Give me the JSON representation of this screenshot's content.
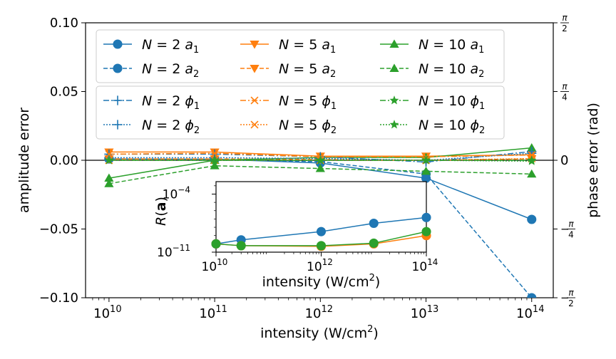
{
  "chart_data": {
    "type": "line",
    "x_scale": "log",
    "x": [
      10000000000.0,
      100000000000.0,
      1000000000000.0,
      10000000000000.0,
      100000000000000.0
    ],
    "xlabel": "intensity (W/cm²)",
    "xlabel_main": "intensity (W/cm",
    "xlabel_sup": "2",
    "xlabel_tail": ")",
    "xlim": [
      6000000000.0,
      160000000000000.0
    ],
    "x_ticks": [
      {
        "value": 10000000000.0,
        "exp": "10"
      },
      {
        "value": 100000000000.0,
        "exp": "11"
      },
      {
        "value": 1000000000000.0,
        "exp": "12"
      },
      {
        "value": 10000000000000.0,
        "exp": "13"
      },
      {
        "value": 100000000000000.0,
        "exp": "14"
      }
    ],
    "ylabel": "amplitude error",
    "ylim": [
      -0.1,
      0.1
    ],
    "y_ticks": [
      "0.10",
      "0.05",
      "0.00",
      "−0.05",
      "−0.10"
    ],
    "y2label": "phase error (rad)",
    "y2lim": [
      -1.5708,
      1.5708
    ],
    "y2_ticks": [
      {
        "value": 1.5708,
        "sign": "",
        "den": "2"
      },
      {
        "value": 0.7854,
        "sign": "",
        "den": "4"
      },
      {
        "value": 0,
        "sign": "",
        "den": ""
      },
      {
        "value": -0.7854,
        "sign": "−",
        "den": "4"
      },
      {
        "value": -1.5708,
        "sign": "−",
        "den": "2"
      }
    ],
    "y2_zero_label": "0",
    "pi_symbol": "π",
    "legend_location": "top-left",
    "series": [
      {
        "name": "N = 2 a1",
        "N": "2",
        "sym": "a",
        "sub": "1",
        "color": "#1f77b4",
        "dash": "",
        "marker": "circle",
        "axis": "amp",
        "x": [
          10000000000.0,
          100000000000.0,
          1000000000000.0,
          10000000000000.0,
          100000000000000.0
        ],
        "y": [
          0.001,
          0.0008,
          -0.002,
          -0.013,
          -0.043
        ]
      },
      {
        "name": "N = 2 a2",
        "N": "2",
        "sym": "a",
        "sub": "2",
        "color": "#1f77b4",
        "dash": "6,3",
        "marker": "circle",
        "axis": "amp",
        "x": [
          10000000000.0,
          100000000000.0,
          1000000000000.0,
          10000000000000.0,
          100000000000000.0
        ],
        "y": [
          0.001,
          0.0005,
          -0.001,
          -0.01,
          -0.1
        ]
      },
      {
        "name": "N = 5 a1",
        "N": "5",
        "sym": "a",
        "sub": "1",
        "color": "#ff7f0e",
        "dash": "",
        "marker": "triangle-down",
        "axis": "amp",
        "x": [
          10000000000.0,
          100000000000.0,
          1000000000000.0,
          10000000000000.0,
          100000000000000.0
        ],
        "y": [
          0.006,
          0.006,
          0.003,
          0.003,
          0.004
        ]
      },
      {
        "name": "N = 5 a2",
        "N": "5",
        "sym": "a",
        "sub": "2",
        "color": "#ff7f0e",
        "dash": "6,3",
        "marker": "triangle-down",
        "axis": "amp",
        "x": [
          10000000000.0,
          100000000000.0,
          1000000000000.0,
          10000000000000.0,
          100000000000000.0
        ],
        "y": [
          0.001,
          0.001,
          0.0005,
          0.0,
          0.001
        ]
      },
      {
        "name": "N = 10 a1",
        "N": "10",
        "sym": "a",
        "sub": "1",
        "color": "#2ca02c",
        "dash": "",
        "marker": "triangle-up",
        "axis": "amp",
        "x": [
          10000000000.0,
          100000000000.0,
          1000000000000.0,
          10000000000000.0,
          100000000000000.0
        ],
        "y": [
          -0.013,
          0.0,
          0.002,
          0.002,
          0.009
        ]
      },
      {
        "name": "N = 10 a2",
        "N": "10",
        "sym": "a",
        "sub": "2",
        "color": "#2ca02c",
        "dash": "6,3",
        "marker": "triangle-up",
        "axis": "amp",
        "x": [
          10000000000.0,
          100000000000.0,
          1000000000000.0,
          10000000000000.0,
          100000000000000.0
        ],
        "y": [
          -0.017,
          -0.004,
          -0.006,
          -0.008,
          -0.01
        ]
      },
      {
        "name": "N = 2 ϕ1",
        "N": "2",
        "sym": "ϕ",
        "sub": "1",
        "color": "#1f77b4",
        "dash": "8,3,2,3",
        "marker": "plus",
        "axis": "phase",
        "x": [
          10000000000.0,
          100000000000.0,
          1000000000000.0,
          10000000000000.0,
          100000000000000.0
        ],
        "y": [
          0.07,
          0.07,
          0.04,
          -0.02,
          0.1
        ]
      },
      {
        "name": "N = 2 ϕ2",
        "N": "2",
        "sym": "ϕ",
        "sub": "2",
        "color": "#1f77b4",
        "dash": "2,2",
        "marker": "plus",
        "axis": "phase",
        "x": [
          10000000000.0,
          100000000000.0,
          1000000000000.0,
          10000000000000.0,
          100000000000000.0
        ],
        "y": [
          0.03,
          0.03,
          0.02,
          0.0,
          0.08
        ]
      },
      {
        "name": "N = 5 ϕ1",
        "N": "5",
        "sym": "ϕ",
        "sub": "1",
        "color": "#ff7f0e",
        "dash": "8,3,2,3",
        "marker": "x",
        "axis": "phase",
        "x": [
          10000000000.0,
          100000000000.0,
          1000000000000.0,
          10000000000000.0,
          100000000000000.0
        ],
        "y": [
          0.07,
          0.08,
          0.04,
          0.04,
          0.06
        ]
      },
      {
        "name": "N = 5 ϕ2",
        "N": "5",
        "sym": "ϕ",
        "sub": "2",
        "color": "#ff7f0e",
        "dash": "2,2",
        "marker": "x",
        "axis": "phase",
        "x": [
          10000000000.0,
          100000000000.0,
          1000000000000.0,
          10000000000000.0,
          100000000000000.0
        ],
        "y": [
          0.0,
          0.0,
          0.0,
          0.0,
          0.02
        ]
      },
      {
        "name": "N = 10 ϕ1",
        "N": "10",
        "sym": "ϕ",
        "sub": "1",
        "color": "#2ca02c",
        "dash": "8,3,2,3",
        "marker": "star",
        "axis": "phase",
        "x": [
          10000000000.0,
          100000000000.0,
          1000000000000.0,
          10000000000000.0,
          100000000000000.0
        ],
        "y": [
          0.0,
          0.0,
          0.0,
          0.0,
          0.0
        ]
      },
      {
        "name": "N = 10 ϕ2",
        "N": "10",
        "sym": "ϕ",
        "sub": "2",
        "color": "#2ca02c",
        "dash": "2,2",
        "marker": "star",
        "axis": "phase",
        "x": [
          10000000000.0,
          100000000000.0,
          1000000000000.0,
          10000000000000.0,
          100000000000000.0
        ],
        "y": [
          0.0,
          0.0,
          0.0,
          0.0,
          -0.01
        ]
      }
    ],
    "inset": {
      "type": "line",
      "x_scale": "log",
      "y_scale": "log",
      "ylabel_main": "R",
      "ylabel_open": "(",
      "ylabel_bold": "a",
      "ylabel_close": ")",
      "xlabel_main": "intensity (W/cm",
      "xlabel_sup": "2",
      "xlabel_tail": ")",
      "xlim": [
        10000000000.0,
        100000000000000.0
      ],
      "ylim_exp": [
        -11,
        -2.5
      ],
      "x_ticks": [
        {
          "value": 10000000000.0,
          "exp": "10"
        },
        {
          "value": 1000000000000.0,
          "exp": "12"
        },
        {
          "value": 100000000000000.0,
          "exp": "14"
        }
      ],
      "y_ticks": [
        {
          "exp_value": -11,
          "exp": "−11"
        },
        {
          "exp_value": -4,
          "exp": "−4"
        }
      ],
      "series": [
        {
          "N": "2",
          "color": "#1f77b4",
          "x": [
            10000000000.0,
            30000000000.0,
            1000000000000.0,
            10000000000000.0,
            100000000000000.0
          ],
          "y": [
            1e-10,
            3e-10,
            3e-09,
            3e-08,
            1.5e-07
          ]
        },
        {
          "N": "5",
          "color": "#ff7f0e",
          "x": [
            10000000000.0,
            30000000000.0,
            1000000000000.0,
            10000000000000.0,
            100000000000000.0
          ],
          "y": [
            1e-10,
            6e-11,
            5e-11,
            1e-10,
            1e-09
          ]
        },
        {
          "N": "10",
          "color": "#2ca02c",
          "x": [
            10000000000.0,
            30000000000.0,
            1000000000000.0,
            10000000000000.0,
            100000000000000.0
          ],
          "y": [
            1e-10,
            6e-11,
            6e-11,
            1.2e-10,
            3e-09
          ]
        }
      ]
    }
  }
}
